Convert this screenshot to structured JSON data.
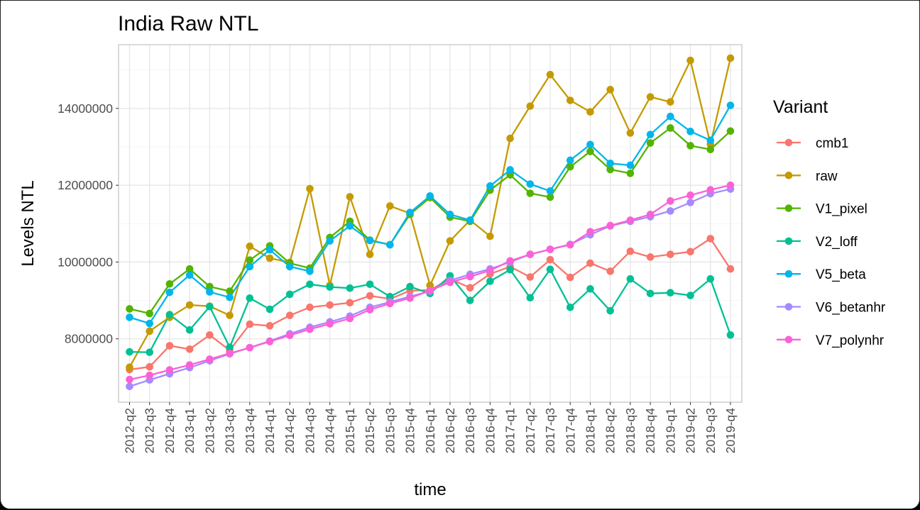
{
  "chart_data": {
    "type": "line",
    "title": "India Raw NTL",
    "xlabel": "time",
    "ylabel": "Levels NTL",
    "ylim": [
      6350000,
      15660000
    ],
    "yticks": [
      8000000,
      10000000,
      12000000,
      14000000
    ],
    "ytick_labels": [
      "8000000",
      "10000000",
      "12000000",
      "14000000"
    ],
    "grid": true,
    "legend_title": "Variant",
    "legend_position": "right",
    "categories": [
      "2012-q2",
      "2012-q3",
      "2012-q4",
      "2013-q1",
      "2013-q2",
      "2013-q3",
      "2013-q4",
      "2014-q1",
      "2014-q2",
      "2014-q3",
      "2014-q4",
      "2015-q1",
      "2015-q2",
      "2015-q3",
      "2015-q4",
      "2016-q1",
      "2016-q2",
      "2016-q3",
      "2016-q4",
      "2017-q1",
      "2017-q2",
      "2017-q3",
      "2017-q4",
      "2018-q1",
      "2018-q2",
      "2018-q3",
      "2018-q4",
      "2019-q1",
      "2019-q2",
      "2019-q3",
      "2019-q4"
    ],
    "series": [
      {
        "name": "cmb1",
        "color": "#F8766D",
        "values": [
          7200000,
          7270000,
          7820000,
          7730000,
          8100000,
          7700000,
          8380000,
          8340000,
          8610000,
          8820000,
          8880000,
          8940000,
          9120000,
          9040000,
          9250000,
          9270000,
          9560000,
          9330000,
          9690000,
          9880000,
          9610000,
          10060000,
          9600000,
          9970000,
          9760000,
          10280000,
          10130000,
          10200000,
          10270000,
          10610000,
          9820000
        ]
      },
      {
        "name": "raw",
        "color": "#C49A00",
        "values": [
          7260000,
          8200000,
          8560000,
          8880000,
          8850000,
          8610000,
          10410000,
          10100000,
          9990000,
          11910000,
          9390000,
          11700000,
          10200000,
          11460000,
          11270000,
          9390000,
          10550000,
          11090000,
          10670000,
          13220000,
          14060000,
          14880000,
          14210000,
          13910000,
          14490000,
          13360000,
          14300000,
          14170000,
          15250000,
          13070000,
          15310000
        ]
      },
      {
        "name": "V1_pixel",
        "color": "#53B400",
        "values": [
          8780000,
          8660000,
          9430000,
          9820000,
          9360000,
          9240000,
          10050000,
          10420000,
          9970000,
          9840000,
          10640000,
          11060000,
          10570000,
          10450000,
          11240000,
          11680000,
          11170000,
          11060000,
          11870000,
          12270000,
          11790000,
          11690000,
          12480000,
          12880000,
          12410000,
          12310000,
          13100000,
          13490000,
          13030000,
          12930000,
          13410000
        ]
      },
      {
        "name": "V2_loff",
        "color": "#00C094",
        "values": [
          7660000,
          7650000,
          8630000,
          8230000,
          8840000,
          7780000,
          9060000,
          8770000,
          9160000,
          9420000,
          9350000,
          9320000,
          9420000,
          9100000,
          9360000,
          9180000,
          9640000,
          9000000,
          9500000,
          9800000,
          9070000,
          9810000,
          8820000,
          9300000,
          8730000,
          9560000,
          9180000,
          9200000,
          9130000,
          9560000,
          8100000
        ]
      },
      {
        "name": "V5_beta",
        "color": "#00B6EB",
        "values": [
          8560000,
          8400000,
          9210000,
          9660000,
          9220000,
          9080000,
          9880000,
          10320000,
          9880000,
          9760000,
          10550000,
          10940000,
          10560000,
          10450000,
          11290000,
          11720000,
          11240000,
          11090000,
          11980000,
          12400000,
          12030000,
          11850000,
          12650000,
          13060000,
          12570000,
          12520000,
          13320000,
          13790000,
          13400000,
          13170000,
          14080000
        ]
      },
      {
        "name": "V6_betanhr",
        "color": "#A58AFF",
        "values": [
          6760000,
          6930000,
          7090000,
          7250000,
          7430000,
          7610000,
          7770000,
          7940000,
          8130000,
          8300000,
          8440000,
          8590000,
          8820000,
          8960000,
          9100000,
          9240000,
          9520000,
          9680000,
          9820000,
          10000000,
          10200000,
          10330000,
          10460000,
          10710000,
          10940000,
          11060000,
          11180000,
          11330000,
          11550000,
          11780000,
          11900000
        ]
      },
      {
        "name": "V7_polynhr",
        "color": "#FB61D7",
        "values": [
          6940000,
          7050000,
          7190000,
          7320000,
          7470000,
          7620000,
          7770000,
          7930000,
          8090000,
          8250000,
          8390000,
          8530000,
          8760000,
          8920000,
          9060000,
          9260000,
          9470000,
          9620000,
          9780000,
          10030000,
          10200000,
          10330000,
          10450000,
          10790000,
          10950000,
          11090000,
          11240000,
          11590000,
          11740000,
          11880000,
          12000000
        ]
      }
    ]
  }
}
